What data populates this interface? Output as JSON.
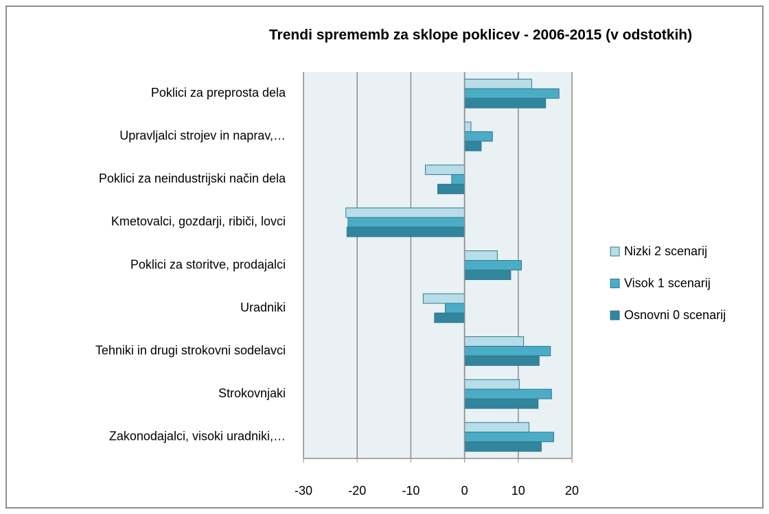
{
  "chart_data": {
    "type": "barh",
    "title": "Trendi sprememb za sklope poklicev  - 2006-2015 (v odstotkih)",
    "categories": [
      "Poklici za preprosta dela",
      "Upravljalci strojev in naprav,…",
      "Poklici za neindustrijski način dela",
      "Kmetovalci, gozdarji, ribiči, lovci",
      "Poklici za storitve, prodajalci",
      "Uradniki",
      "Tehniki in drugi strokovni sodelavci",
      "Strokovnjaki",
      "Zakonodajalci, visoki uradniki,…"
    ],
    "series": [
      {
        "name": "Nizki 2 scenarij",
        "color": "#b7dde8",
        "values": [
          12.5,
          1.2,
          -7.3,
          -22.1,
          6.1,
          -7.7,
          11.0,
          10.2,
          12.0
        ]
      },
      {
        "name": "Visok 1 scenarij",
        "color": "#4bacc6",
        "values": [
          17.6,
          5.2,
          -2.4,
          -21.7,
          10.6,
          -3.6,
          16.0,
          16.2,
          16.6
        ]
      },
      {
        "name": "Osnovni 0 scenarij",
        "color": "#31859c",
        "values": [
          15.1,
          3.1,
          -5.0,
          -21.9,
          8.6,
          -5.6,
          13.9,
          13.7,
          14.3
        ]
      }
    ],
    "xlim": [
      -30,
      20
    ],
    "xticks": [
      -30,
      -20,
      -10,
      0,
      10,
      20
    ],
    "grid": true,
    "legend": "right"
  }
}
